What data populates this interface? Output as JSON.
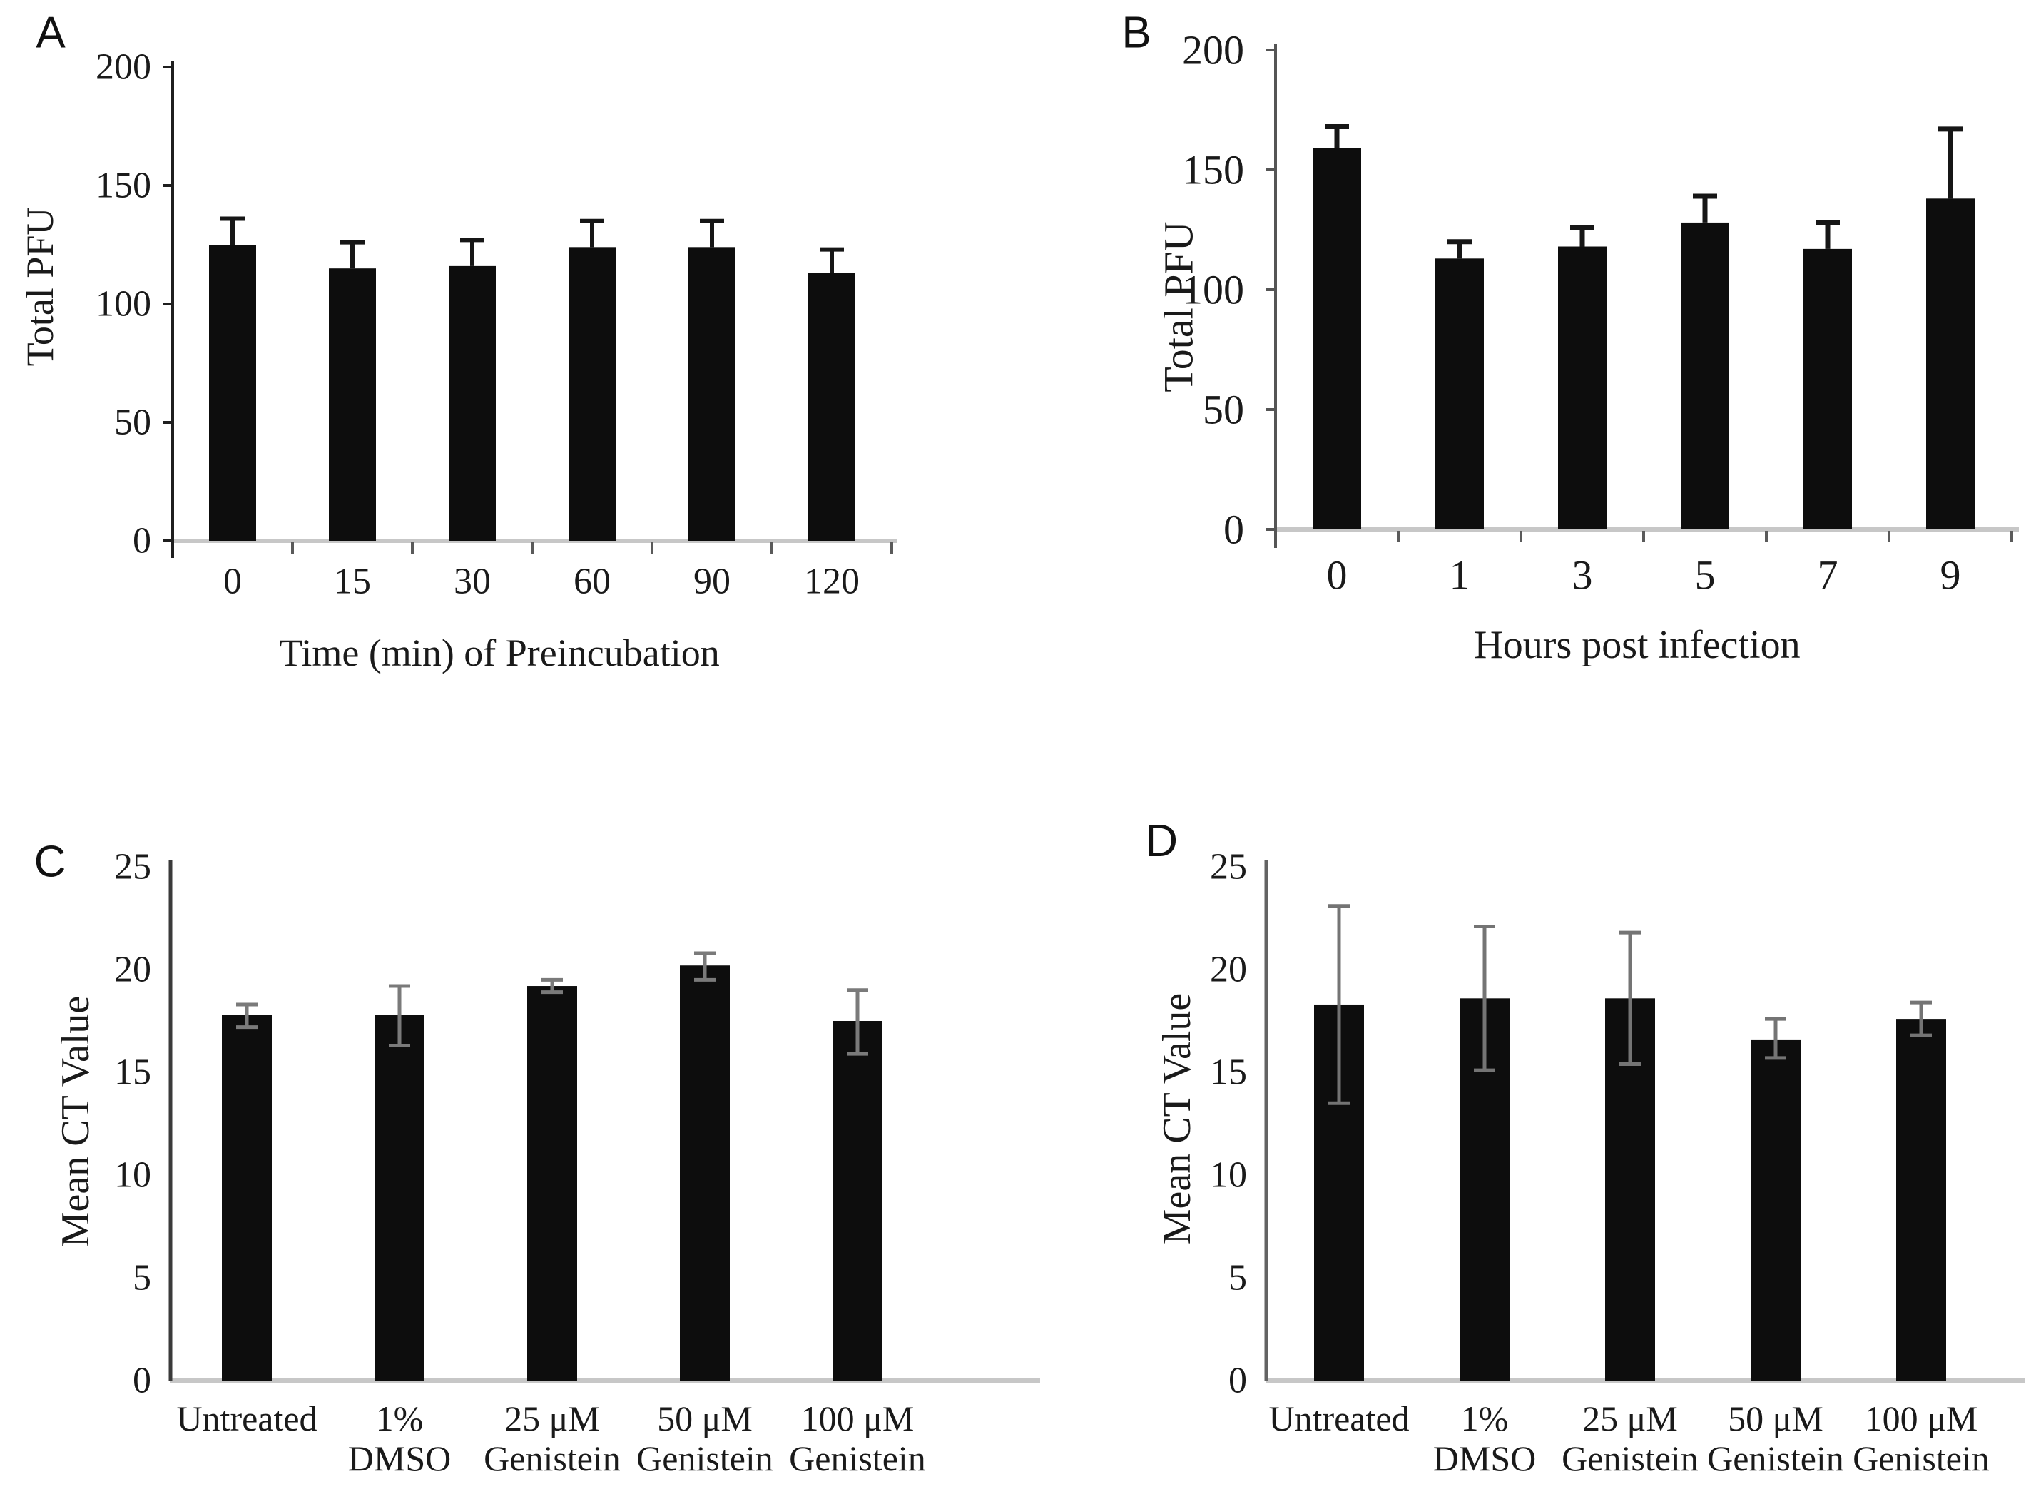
{
  "figure": {
    "background": "#ffffff",
    "description": "Four-panel bar chart figure (A, B, C, D)"
  },
  "chart_data": [
    {
      "panel_label": "A",
      "type": "bar",
      "title": "",
      "xlabel": "Time (min) of Preincubation",
      "ylabel": "Total PFU",
      "ylim": [
        0,
        200
      ],
      "yticks": [
        0,
        50,
        100,
        150,
        200
      ],
      "categories": [
        "0",
        "15",
        "30",
        "60",
        "90",
        "120"
      ],
      "values": [
        125,
        115,
        116,
        124,
        124,
        113
      ],
      "errors_up": [
        11,
        11,
        11,
        11,
        11,
        10
      ],
      "errors_down": [
        0,
        0,
        0,
        0,
        0,
        0
      ],
      "error_style": "upper",
      "bar_color": "#0d0d0d",
      "error_color": "#161616",
      "axis_color": "#1f1f1f",
      "baseline_color": "#c7c7c7",
      "grid": false,
      "legend": null
    },
    {
      "panel_label": "B",
      "type": "bar",
      "title": "",
      "xlabel": "Hours post infection",
      "ylabel": "Total PFU",
      "ylim": [
        0,
        200
      ],
      "yticks": [
        0,
        50,
        100,
        150,
        200
      ],
      "categories": [
        "0",
        "1",
        "3",
        "5",
        "7",
        "9"
      ],
      "values": [
        159,
        113,
        118,
        128,
        117,
        138
      ],
      "errors_up": [
        9,
        7,
        8,
        11,
        11,
        29
      ],
      "errors_down": [
        0,
        0,
        0,
        0,
        0,
        0
      ],
      "error_style": "upper",
      "bar_color": "#0d0d0d",
      "error_color": "#161616",
      "axis_color": "#555555",
      "baseline_color": "#c7c7c7",
      "grid": false,
      "legend": null
    },
    {
      "panel_label": "C",
      "type": "bar",
      "title": "",
      "xlabel": null,
      "ylabel": "Mean CT Value",
      "ylim": [
        0,
        25
      ],
      "yticks": [
        0,
        5,
        10,
        15,
        20,
        25
      ],
      "categories": [
        [
          "Untreated"
        ],
        [
          "1%",
          "DMSO"
        ],
        [
          "25 μM",
          "Genistein"
        ],
        [
          "50 μM",
          "Genistein"
        ],
        [
          "100 μM",
          "Genistein"
        ]
      ],
      "values": [
        17.8,
        17.8,
        19.2,
        20.2,
        17.5
      ],
      "errors_up": [
        0.5,
        1.4,
        0.3,
        0.6,
        1.5
      ],
      "errors_down": [
        0.6,
        1.5,
        0.3,
        0.7,
        1.6
      ],
      "error_style": "both",
      "bar_color": "#0d0d0d",
      "error_color": "#7a7a7a",
      "axis_color": "#3a3a3a",
      "baseline_color": "#c7c7c7",
      "grid": false,
      "legend": null
    },
    {
      "panel_label": "D",
      "type": "bar",
      "title": "",
      "xlabel": null,
      "ylabel": "Mean CT Value",
      "ylim": [
        0,
        25
      ],
      "yticks": [
        0,
        5,
        10,
        15,
        20,
        25
      ],
      "categories": [
        [
          "Untreated"
        ],
        [
          "1%",
          "DMSO"
        ],
        [
          "25 μM",
          "Genistein"
        ],
        [
          "50 μM",
          "Genistein"
        ],
        [
          "100 μM",
          "Genistein"
        ]
      ],
      "values": [
        18.3,
        18.6,
        18.6,
        16.6,
        17.6
      ],
      "errors_up": [
        4.8,
        3.5,
        3.2,
        1.0,
        0.8
      ],
      "errors_down": [
        4.8,
        3.5,
        3.2,
        0.9,
        0.8
      ],
      "error_style": "both",
      "bar_color": "#0d0d0d",
      "error_color": "#747474",
      "axis_color": "#636363",
      "baseline_color": "#c7c7c7",
      "grid": false,
      "legend": null
    }
  ]
}
